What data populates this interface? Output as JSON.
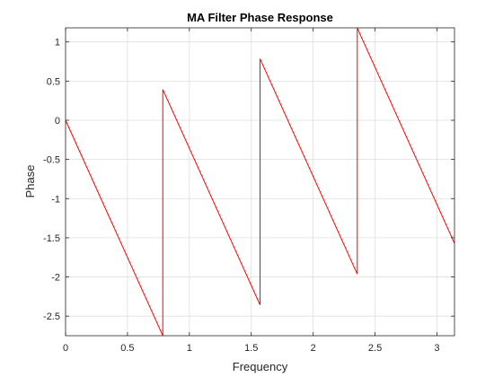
{
  "chart_data": {
    "type": "line",
    "title": "MA Filter Phase Response",
    "xlabel": "Frequency",
    "ylabel": "Phase",
    "xlim": [
      0,
      3.1416
    ],
    "ylim": [
      -2.75,
      1.18
    ],
    "grid": true,
    "xticks": [
      0,
      0.5,
      1,
      1.5,
      2,
      2.5,
      3
    ],
    "xtick_labels": [
      "0",
      "0.5",
      "1",
      "1.5",
      "2",
      "2.5",
      "3"
    ],
    "yticks": [
      1,
      0.5,
      0,
      -0.5,
      -1,
      -1.5,
      -2,
      -2.5
    ],
    "ytick_labels": [
      "1",
      "0.5",
      "0",
      "-0.5",
      "-1",
      "-1.5",
      "-2",
      "-2.5"
    ],
    "series": [
      {
        "color": "#ff0000",
        "x": [
          0,
          0.7854,
          0.7854,
          1.5708,
          1.5708,
          2.3562,
          2.3562,
          3.1416
        ],
        "y": [
          0,
          -2.749,
          0.393,
          -2.356,
          0.785,
          -1.963,
          1.178,
          -1.571
        ]
      }
    ]
  }
}
